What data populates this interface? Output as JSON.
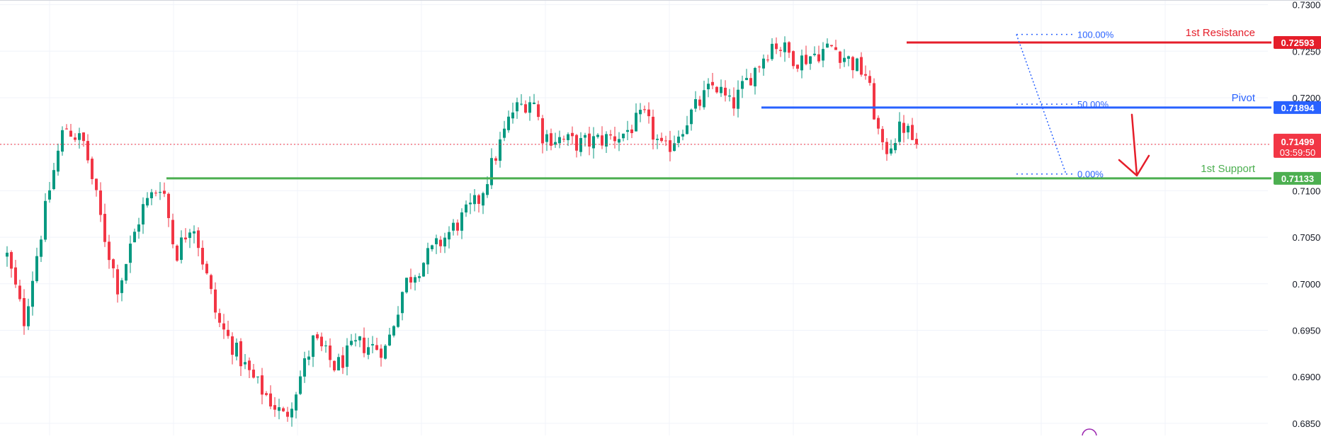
{
  "colors": {
    "up": "#089981",
    "down": "#f23645",
    "resistance": "#e51e2a",
    "pivot": "#2962ff",
    "support": "#4caf50",
    "price": "#f23645",
    "fib": "#2962ff",
    "grid": "#f0f3fa",
    "axis_text": "#131722"
  },
  "chart_data": {
    "type": "candlestick",
    "price_axis": {
      "ylim": [
        0.6837,
        0.7305
      ],
      "ticks": [
        "0.73000",
        "0.72500",
        "0.72000",
        "0.71500",
        "0.71000",
        "0.70500",
        "0.70000",
        "0.69500",
        "0.69000",
        "0.68500"
      ],
      "tick_values": [
        0.73,
        0.725,
        0.72,
        0.715,
        0.71,
        0.705,
        0.7,
        0.695,
        0.69,
        0.685
      ]
    },
    "levels": [
      {
        "name": "1st Resistance",
        "value": 0.72593,
        "label": "0.72593",
        "color_key": "resistance"
      },
      {
        "name": "Pivot",
        "value": 0.71894,
        "label": "0.71894",
        "color_key": "pivot"
      },
      {
        "name": "1st Support",
        "value": 0.71133,
        "label": "0.71133",
        "color_key": "support"
      }
    ],
    "current_price": {
      "value": 0.71499,
      "label": "0.71499",
      "countdown": "03:59:50"
    },
    "fibonacci": [
      {
        "label": "100.00%",
        "value": 0.7268
      },
      {
        "label": "50.00%",
        "value": 0.7193
      },
      {
        "label": "0.00%",
        "value": 0.7118
      }
    ],
    "bar_count": 215,
    "waypoints": [
      [
        0,
        0.703
      ],
      [
        10,
        0.696
      ],
      [
        25,
        0.71
      ],
      [
        34,
        0.717
      ],
      [
        46,
        0.715
      ],
      [
        58,
        0.705
      ],
      [
        66,
        0.6995
      ],
      [
        80,
        0.708
      ],
      [
        92,
        0.711
      ],
      [
        100,
        0.703
      ],
      [
        110,
        0.707
      ],
      [
        125,
        0.696
      ],
      [
        145,
        0.69
      ],
      [
        165,
        0.6855
      ],
      [
        182,
        0.694
      ],
      [
        195,
        0.691
      ],
      [
        208,
        0.6935
      ],
      [
        225,
        0.693
      ],
      [
        236,
        0.7
      ],
      [
        250,
        0.703
      ],
      [
        265,
        0.706
      ],
      [
        280,
        0.709
      ],
      [
        300,
        0.7185
      ],
      [
        312,
        0.72
      ],
      [
        318,
        0.716
      ],
      [
        340,
        0.715
      ],
      [
        365,
        0.716
      ],
      [
        378,
        0.718
      ],
      [
        390,
        0.714
      ],
      [
        405,
        0.718
      ],
      [
        420,
        0.7215
      ],
      [
        430,
        0.719
      ],
      [
        440,
        0.722
      ],
      [
        455,
        0.726
      ],
      [
        470,
        0.724
      ],
      [
        490,
        0.7255
      ],
      [
        510,
        0.7225
      ],
      [
        520,
        0.714
      ],
      [
        532,
        0.717
      ],
      [
        540,
        0.7149
      ]
    ],
    "waypoint_x_max": 540
  },
  "labels": {
    "resistance_text": "1st Resistance",
    "pivot_text": "Pivot",
    "support_text": "1st Support"
  }
}
